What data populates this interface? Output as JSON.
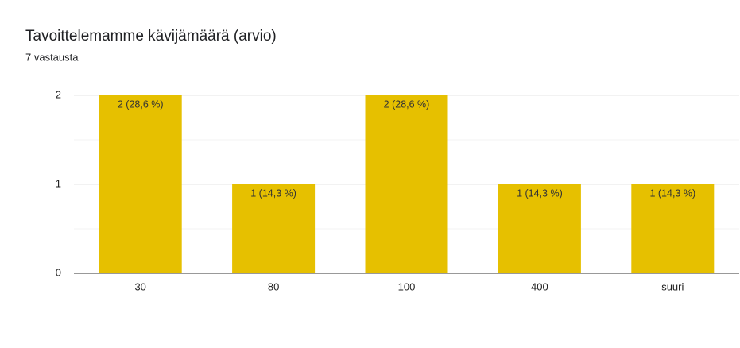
{
  "chart_data": {
    "type": "bar",
    "title": "Tavoittelemamme kävijämäärä (arvio)",
    "subtitle": "7 vastausta",
    "categories": [
      "30",
      "80",
      "100",
      "400",
      "suuri"
    ],
    "values": [
      2,
      1,
      2,
      1,
      1
    ],
    "value_labels": [
      "2 (28,6 %)",
      "1 (14,3 %)",
      "2 (28,6 %)",
      "1 (14,3 %)",
      "1 (14,3 %)"
    ],
    "color": "#e6c000",
    "ylim": [
      0,
      2
    ],
    "yticks": [
      0,
      1,
      2
    ],
    "minor_yticks": [
      0.5,
      1.5
    ],
    "grid": true
  }
}
